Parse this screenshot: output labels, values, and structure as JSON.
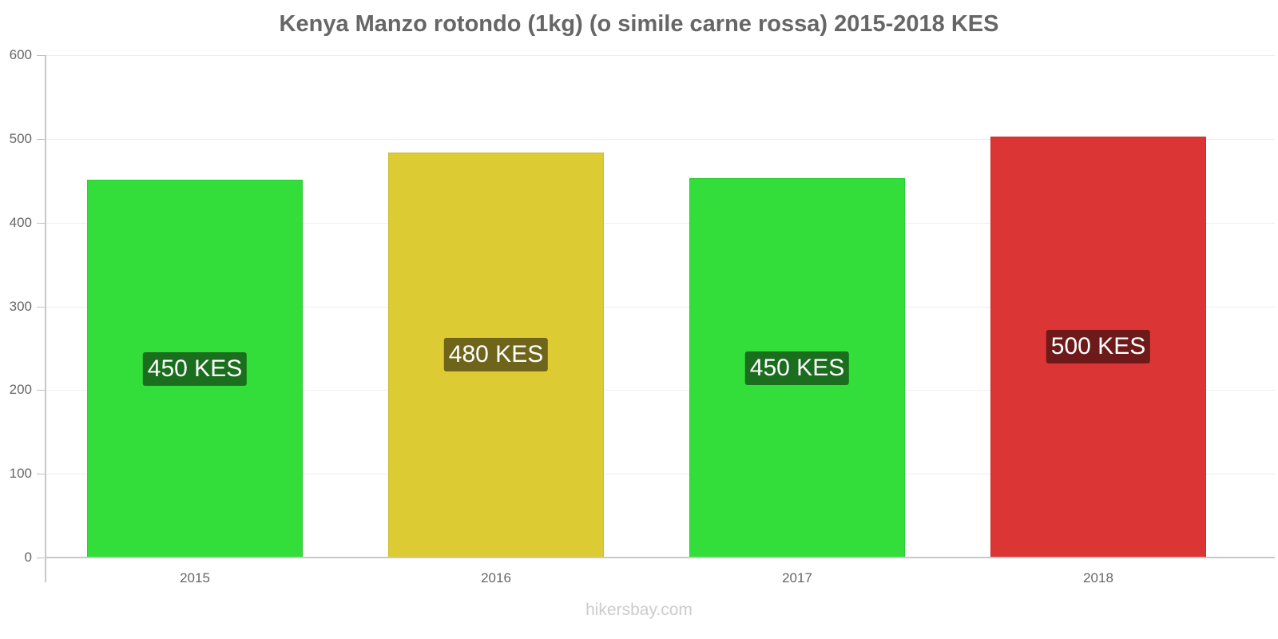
{
  "title": "Kenya Manzo rotondo (1kg) (o simile carne rossa) 2015-2018 KES",
  "watermark": "hikersbay.com",
  "y_ticks": [
    "0",
    "100",
    "200",
    "300",
    "400",
    "500",
    "600"
  ],
  "bars": [
    {
      "year": "2015",
      "label": "450 KES",
      "color": "#33dd3a",
      "label_bg": "#1a6e1d"
    },
    {
      "year": "2016",
      "label": "480 KES",
      "color": "#dccb33",
      "label_bg": "#6e651a"
    },
    {
      "year": "2017",
      "label": "450 KES",
      "color": "#33dd3a",
      "label_bg": "#1a6e1d"
    },
    {
      "year": "2018",
      "label": "500 KES",
      "color": "#dc3535",
      "label_bg": "#6e1a1a"
    }
  ],
  "chart_data": {
    "type": "bar",
    "title": "Kenya Manzo rotondo (1kg) (o simile carne rossa) 2015-2018 KES",
    "categories": [
      "2015",
      "2016",
      "2017",
      "2018"
    ],
    "values": [
      451,
      484,
      453,
      503
    ],
    "data_labels": [
      "450 KES",
      "480 KES",
      "450 KES",
      "500 KES"
    ],
    "colors": [
      "#33dd3a",
      "#dccb33",
      "#33dd3a",
      "#dc3535"
    ],
    "xlabel": "",
    "ylabel": "",
    "ylim": [
      0,
      600
    ],
    "yticks": [
      0,
      100,
      200,
      300,
      400,
      500,
      600
    ],
    "grid": true,
    "legend": null,
    "source": "hikersbay.com"
  }
}
